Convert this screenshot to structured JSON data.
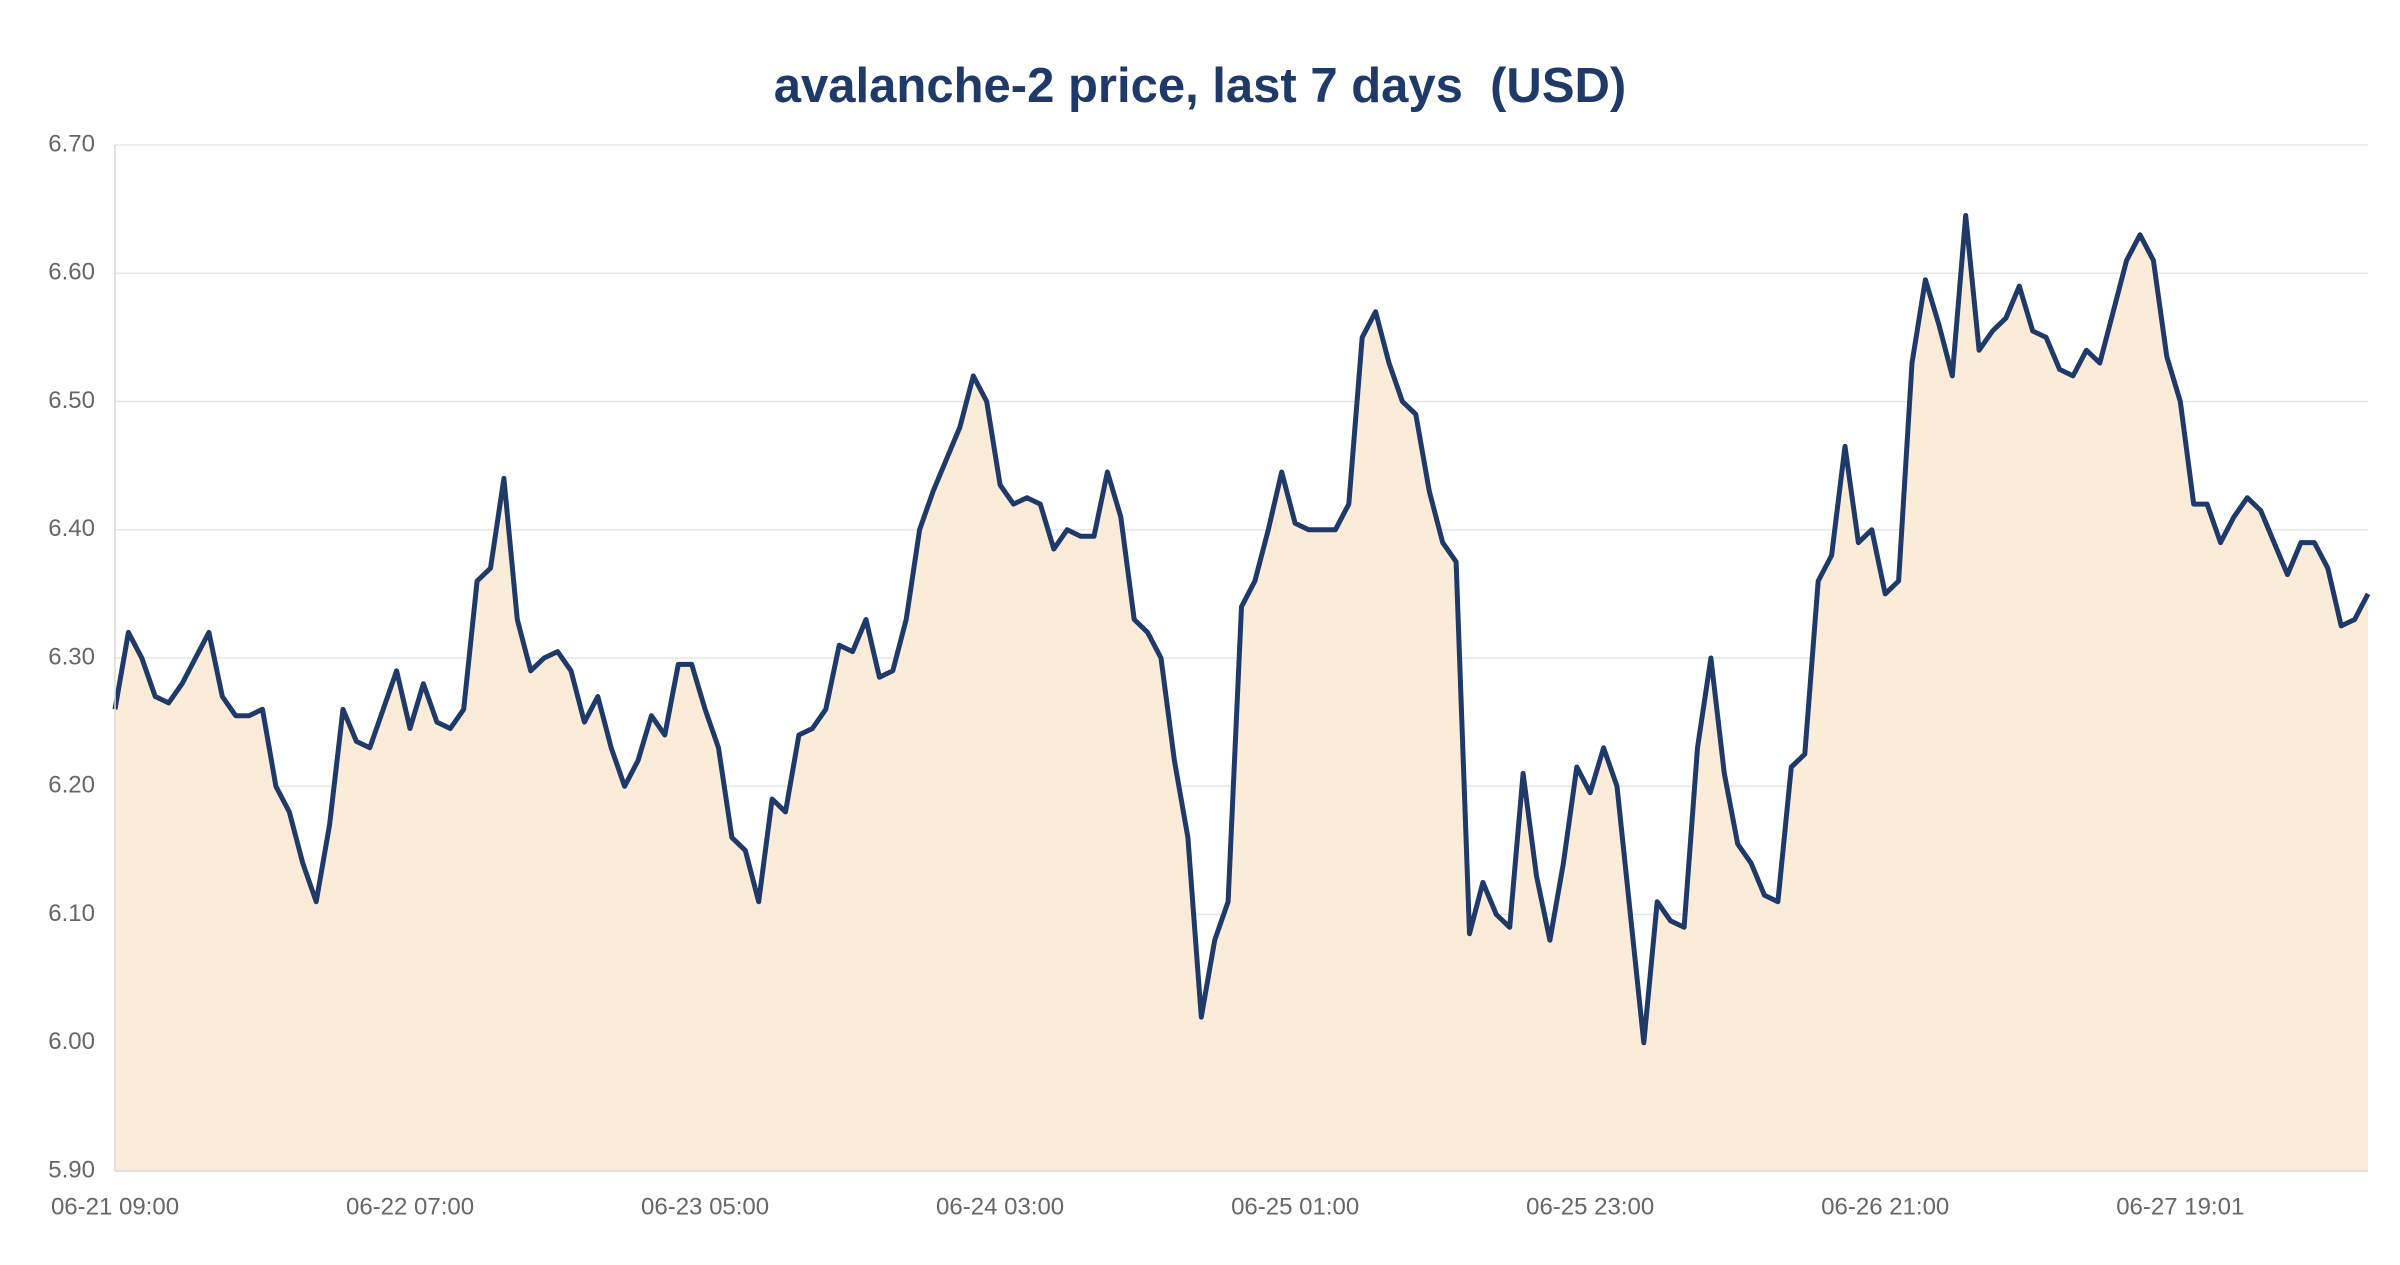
{
  "chart_data": {
    "type": "area",
    "title": "avalanche-2 price, last 7 days  (USD)",
    "categories": [
      "06-21 09:00",
      null,
      null,
      null,
      null,
      null,
      null,
      null,
      null,
      null,
      null,
      null,
      null,
      null,
      null,
      null,
      null,
      null,
      null,
      null,
      null,
      null,
      "06-22 07:00",
      null,
      null,
      null,
      null,
      null,
      null,
      null,
      null,
      null,
      null,
      null,
      null,
      null,
      null,
      null,
      null,
      null,
      null,
      null,
      null,
      null,
      "06-23 05:00",
      null,
      null,
      null,
      null,
      null,
      null,
      null,
      null,
      null,
      null,
      null,
      null,
      null,
      null,
      null,
      null,
      null,
      null,
      null,
      null,
      null,
      "06-24 03:00",
      null,
      null,
      null,
      null,
      null,
      null,
      null,
      null,
      null,
      null,
      null,
      null,
      null,
      null,
      null,
      null,
      null,
      null,
      null,
      null,
      null,
      "06-25 01:00",
      null,
      null,
      null,
      null,
      null,
      null,
      null,
      null,
      null,
      null,
      null,
      null,
      null,
      null,
      null,
      null,
      null,
      null,
      null,
      null,
      null,
      "06-25 23:00",
      null,
      null,
      null,
      null,
      null,
      null,
      null,
      null,
      null,
      null,
      null,
      null,
      null,
      null,
      null,
      null,
      null,
      null,
      null,
      null,
      null,
      "06-26 21:00",
      null,
      null,
      null,
      null,
      null,
      null,
      null,
      null,
      null,
      null,
      null,
      null,
      null,
      null,
      null,
      null,
      null,
      null,
      null,
      null,
      null,
      "06-27 19:01",
      null,
      null,
      null,
      null,
      null,
      null,
      null,
      null,
      null,
      null,
      null,
      null,
      null,
      null
    ],
    "values": [
      6.26,
      6.32,
      6.3,
      6.27,
      6.265,
      6.28,
      6.3,
      6.32,
      6.27,
      6.255,
      6.255,
      6.26,
      6.2,
      6.18,
      6.14,
      6.11,
      6.17,
      6.26,
      6.235,
      6.23,
      6.26,
      6.29,
      6.245,
      6.28,
      6.25,
      6.245,
      6.26,
      6.36,
      6.37,
      6.44,
      6.33,
      6.29,
      6.3,
      6.305,
      6.29,
      6.25,
      6.27,
      6.23,
      6.2,
      6.22,
      6.255,
      6.24,
      6.295,
      6.295,
      6.26,
      6.23,
      6.16,
      6.15,
      6.11,
      6.19,
      6.18,
      6.24,
      6.245,
      6.26,
      6.31,
      6.305,
      6.33,
      6.285,
      6.29,
      6.33,
      6.4,
      6.43,
      6.455,
      6.48,
      6.52,
      6.5,
      6.435,
      6.42,
      6.425,
      6.42,
      6.385,
      6.4,
      6.395,
      6.395,
      6.445,
      6.41,
      6.33,
      6.32,
      6.3,
      6.22,
      6.16,
      6.02,
      6.08,
      6.11,
      6.34,
      6.36,
      6.4,
      6.445,
      6.405,
      6.4,
      6.4,
      6.4,
      6.42,
      6.55,
      6.57,
      6.53,
      6.5,
      6.49,
      6.43,
      6.39,
      6.375,
      6.085,
      6.125,
      6.1,
      6.09,
      6.21,
      6.13,
      6.08,
      6.14,
      6.215,
      6.195,
      6.23,
      6.2,
      6.1,
      6.0,
      6.11,
      6.095,
      6.09,
      6.23,
      6.3,
      6.21,
      6.155,
      6.14,
      6.115,
      6.11,
      6.215,
      6.225,
      6.36,
      6.38,
      6.465,
      6.39,
      6.4,
      6.35,
      6.36,
      6.53,
      6.595,
      6.56,
      6.52,
      6.645,
      6.54,
      6.555,
      6.565,
      6.59,
      6.555,
      6.55,
      6.525,
      6.52,
      6.54,
      6.53,
      6.57,
      6.61,
      6.63,
      6.61,
      6.535,
      6.5,
      6.42,
      6.42,
      6.39,
      6.41,
      6.425,
      6.415,
      6.39,
      6.365,
      6.39,
      6.39,
      6.37,
      6.325,
      6.33,
      6.35
    ],
    "color": "#1f3a68",
    "area_color": "#fbecda",
    "ylim": [
      5.9,
      6.7
    ],
    "yticks": [
      {
        "value": 5.9,
        "label": "5.90"
      },
      {
        "value": 6.0,
        "label": "6.00"
      },
      {
        "value": 6.1,
        "label": "6.10"
      },
      {
        "value": 6.2,
        "label": "6.20"
      },
      {
        "value": 6.3,
        "label": "6.30"
      },
      {
        "value": 6.4,
        "label": "6.40"
      },
      {
        "value": 6.5,
        "label": "6.50"
      },
      {
        "value": 6.6,
        "label": "6.60"
      },
      {
        "value": 6.7,
        "label": "6.70"
      }
    ],
    "grid": true
  }
}
